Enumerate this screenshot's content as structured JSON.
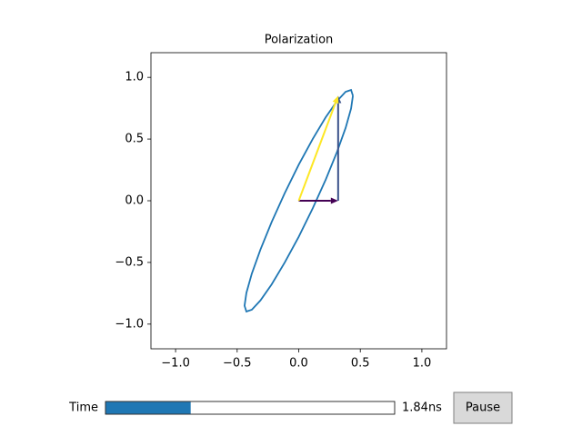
{
  "chart_data": {
    "type": "line",
    "title": "Polarization",
    "x": [
      0.44,
      0.425,
      0.381,
      0.311,
      0.22,
      0.114,
      0,
      -0.114,
      -0.22,
      -0.311,
      -0.381,
      -0.425,
      -0.44,
      -0.425,
      -0.381,
      -0.311,
      -0.22,
      -0.114,
      0,
      0.114,
      0.22,
      0.311,
      0.381,
      0.425,
      0.44
    ],
    "series": [
      {
        "color": "#1f77b4",
        "values": [
          0.851,
          0.747,
          0.591,
          0.396,
          0.173,
          -0.061,
          -0.292,
          -0.501,
          -0.678,
          -0.808,
          -0.883,
          -0.898,
          -0.851,
          -0.747,
          -0.591,
          -0.396,
          -0.173,
          0.061,
          0.292,
          0.501,
          0.678,
          0.808,
          0.883,
          0.898,
          0.851
        ]
      }
    ],
    "arrows": [
      {
        "color": "#440154",
        "x0": 0,
        "y0": 0,
        "x1": 0.32,
        "y1": 0
      },
      {
        "color": "#3b528b",
        "x0": 0.32,
        "y0": 0,
        "x1": 0.32,
        "y1": 0.85
      },
      {
        "color": "#fde725",
        "x0": 0,
        "y0": 0,
        "x1": 0.32,
        "y1": 0.85
      }
    ],
    "xlim": [
      -1.2,
      1.2
    ],
    "ylim": [
      -1.2,
      1.2
    ],
    "xticks": [
      {
        "value": -1,
        "label": "−1.0"
      },
      {
        "value": -0.5,
        "label": "−0.5"
      },
      {
        "value": 0,
        "label": "0.0"
      },
      {
        "value": 0.5,
        "label": "0.5"
      },
      {
        "value": 1,
        "label": "1.0"
      }
    ],
    "yticks": [
      {
        "value": -1,
        "label": "−1.0"
      },
      {
        "value": -0.5,
        "label": "−0.5"
      },
      {
        "value": 0,
        "label": "0.0"
      },
      {
        "value": 0.5,
        "label": "0.5"
      },
      {
        "value": 1,
        "label": "1.0"
      }
    ],
    "slider": {
      "label": "Time",
      "value": 1.84,
      "value_label": "1.84ns",
      "min": 0,
      "max": 6.28,
      "color": "#1f77b4"
    },
    "button": "Pause"
  }
}
